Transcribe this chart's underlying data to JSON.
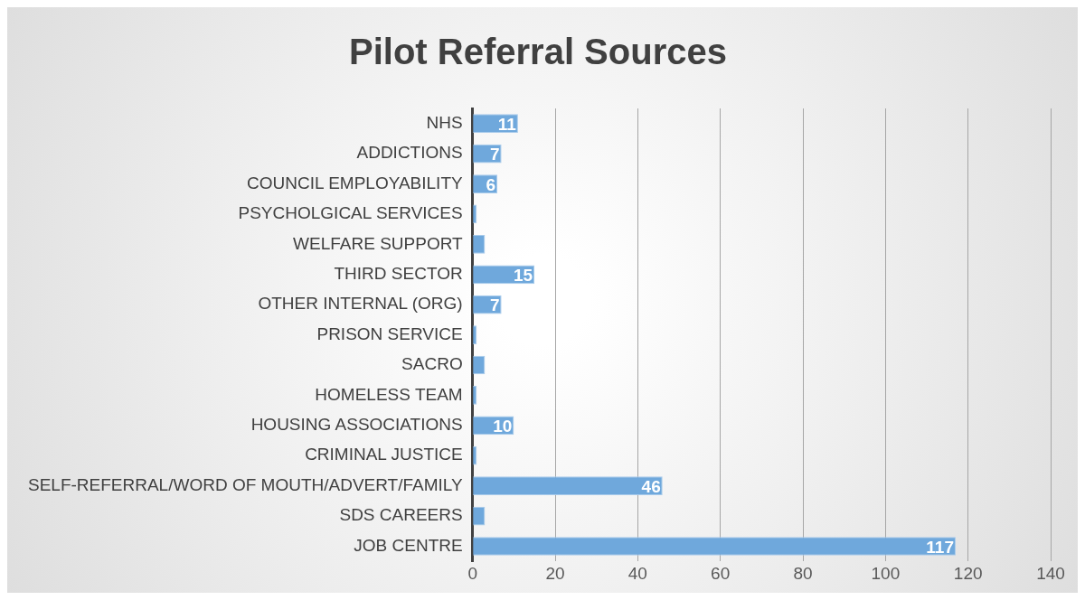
{
  "chart_data": {
    "type": "bar",
    "title": "Pilot Referral Sources",
    "orientation": "horizontal",
    "categories": [
      "NHS",
      "ADDICTIONS",
      "COUNCIL EMPLOYABILITY",
      "PSYCHOLGICAL SERVICES",
      "WELFARE SUPPORT",
      "THIRD SECTOR",
      "OTHER INTERNAL (ORG)",
      "PRISON SERVICE",
      "SACRO",
      "HOMELESS TEAM",
      "HOUSING ASSOCIATIONS",
      "CRIMINAL JUSTICE",
      "SELF-REFERRAL/WORD OF MOUTH/ADVERT/FAMILY",
      "SDS CAREERS",
      "JOB CENTRE"
    ],
    "values": [
      11,
      7,
      6,
      1,
      3,
      15,
      7,
      1,
      3,
      1,
      10,
      1,
      46,
      3,
      117
    ],
    "value_labels": [
      "11",
      "7",
      "6",
      null,
      null,
      "15",
      "7",
      null,
      null,
      null,
      "10",
      null,
      "46",
      null,
      "117"
    ],
    "color": "#6fa8dc",
    "xlim": [
      0,
      140
    ],
    "xticks": [
      0,
      20,
      40,
      60,
      80,
      100,
      120,
      140
    ],
    "grid": "x",
    "legend": false
  }
}
